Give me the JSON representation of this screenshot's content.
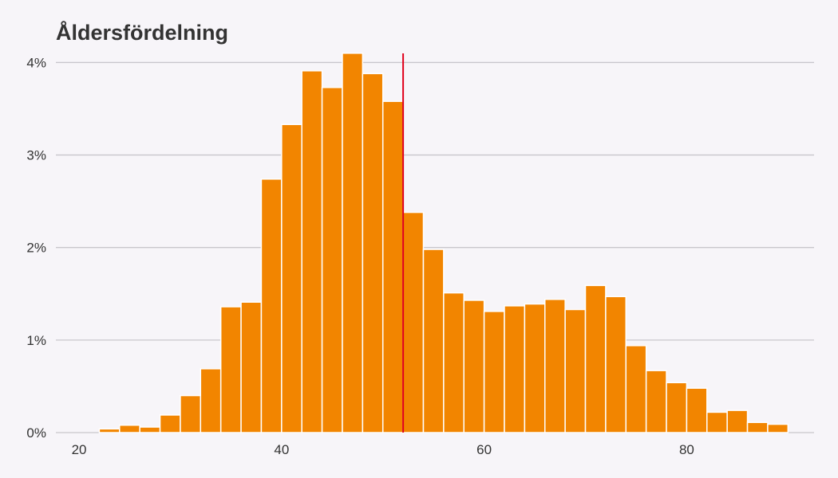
{
  "chart_data": {
    "type": "bar",
    "title": "Åldersfördelning",
    "xlabel": "",
    "ylabel": "",
    "bin_width": 2,
    "x_start": 20,
    "values": [
      0.0,
      0.04,
      0.08,
      0.06,
      0.19,
      0.4,
      0.69,
      1.36,
      1.41,
      2.74,
      3.33,
      3.91,
      3.73,
      4.1,
      3.88,
      3.58,
      2.38,
      1.98,
      1.51,
      1.43,
      1.31,
      1.37,
      1.39,
      1.44,
      1.33,
      1.59,
      1.47,
      0.94,
      0.67,
      0.54,
      0.48,
      0.22,
      0.24,
      0.11,
      0.09
    ],
    "xlim": [
      18.5,
      91
    ],
    "ylim": [
      0,
      4.15
    ],
    "xticks": [
      20,
      40,
      60,
      80
    ],
    "yticks": [
      0,
      1,
      2,
      3,
      4
    ],
    "ytick_suffix": "%",
    "reference_line": 52,
    "grid": "horizontal",
    "colors": {
      "bar": "#f28500",
      "bar_edge": "#ffffff",
      "reference_line": "#e0001b",
      "grid": "#c8c6cc",
      "text": "#333333"
    }
  }
}
